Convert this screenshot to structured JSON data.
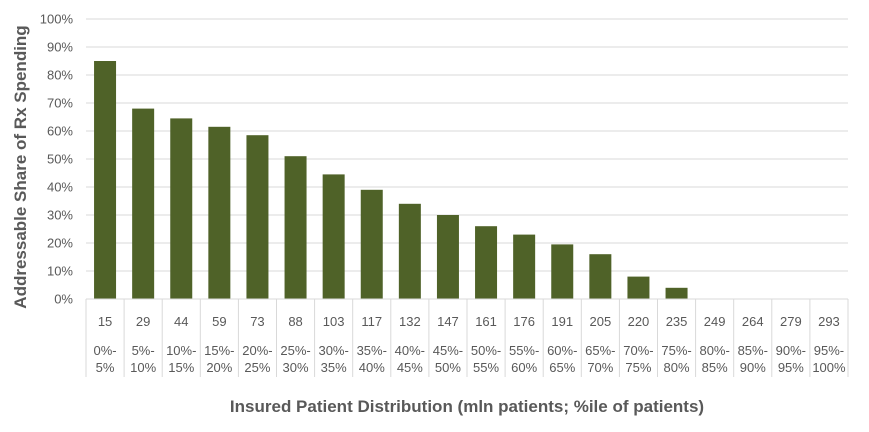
{
  "chart_data": {
    "type": "bar",
    "xlabel": "Insured Patient Distribution (mln patients; %ile of patients)",
    "ylabel": "Addressable Share of Rx Spending",
    "ylim": [
      0,
      100
    ],
    "y_ticks": [
      "0%",
      "10%",
      "20%",
      "30%",
      "40%",
      "50%",
      "60%",
      "70%",
      "80%",
      "90%",
      "100%"
    ],
    "grid": true,
    "legend": "none",
    "bar_color": "#4f6228",
    "categories": [
      {
        "patients": "15",
        "pct_top": "0%-",
        "pct_bottom": "5%"
      },
      {
        "patients": "29",
        "pct_top": "5%-",
        "pct_bottom": "10%"
      },
      {
        "patients": "44",
        "pct_top": "10%-",
        "pct_bottom": "15%"
      },
      {
        "patients": "59",
        "pct_top": "15%-",
        "pct_bottom": "20%"
      },
      {
        "patients": "73",
        "pct_top": "20%-",
        "pct_bottom": "25%"
      },
      {
        "patients": "88",
        "pct_top": "25%-",
        "pct_bottom": "30%"
      },
      {
        "patients": "103",
        "pct_top": "30%-",
        "pct_bottom": "35%"
      },
      {
        "patients": "117",
        "pct_top": "35%-",
        "pct_bottom": "40%"
      },
      {
        "patients": "132",
        "pct_top": "40%-",
        "pct_bottom": "45%"
      },
      {
        "patients": "147",
        "pct_top": "45%-",
        "pct_bottom": "50%"
      },
      {
        "patients": "161",
        "pct_top": "50%-",
        "pct_bottom": "55%"
      },
      {
        "patients": "176",
        "pct_top": "55%-",
        "pct_bottom": "60%"
      },
      {
        "patients": "191",
        "pct_top": "60%-",
        "pct_bottom": "65%"
      },
      {
        "patients": "205",
        "pct_top": "65%-",
        "pct_bottom": "70%"
      },
      {
        "patients": "220",
        "pct_top": "70%-",
        "pct_bottom": "75%"
      },
      {
        "patients": "235",
        "pct_top": "75%-",
        "pct_bottom": "80%"
      },
      {
        "patients": "249",
        "pct_top": "80%-",
        "pct_bottom": "85%"
      },
      {
        "patients": "264",
        "pct_top": "85%-",
        "pct_bottom": "90%"
      },
      {
        "patients": "279",
        "pct_top": "90%-",
        "pct_bottom": "95%"
      },
      {
        "patients": "293",
        "pct_top": "95%-",
        "pct_bottom": "100%"
      }
    ],
    "values": [
      85,
      68,
      64.5,
      61.5,
      58.5,
      51,
      44.5,
      39,
      34,
      30,
      26,
      23,
      19.5,
      16,
      8,
      4,
      0,
      0,
      0,
      0
    ]
  }
}
